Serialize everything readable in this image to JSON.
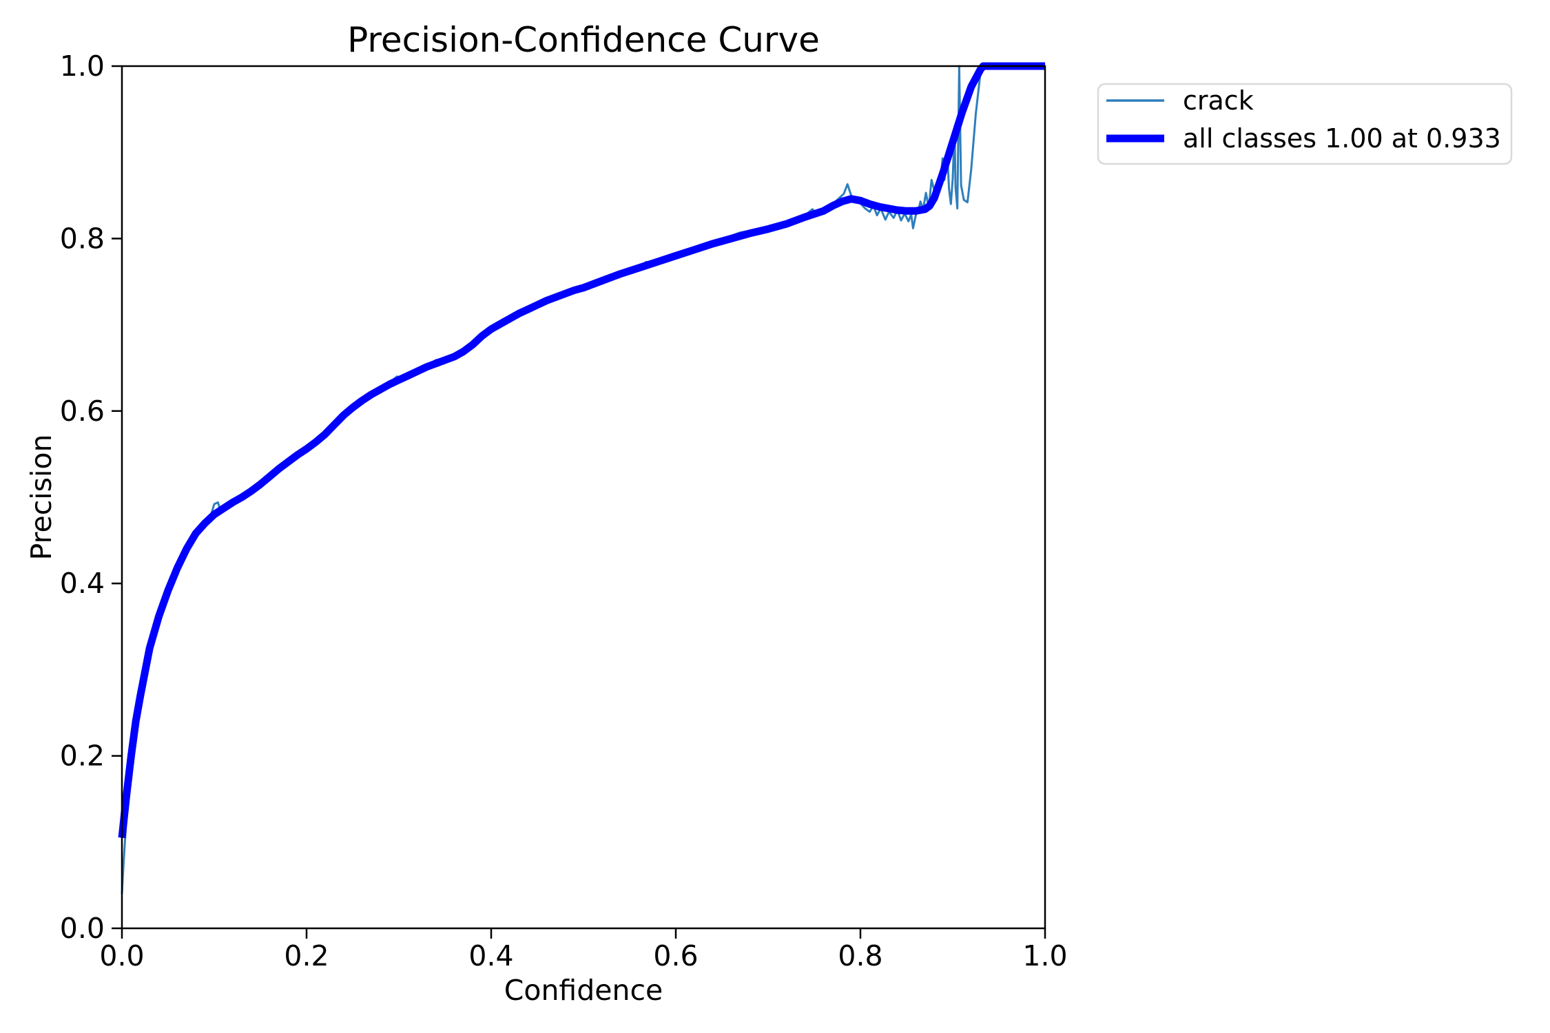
{
  "chart_data": {
    "type": "line",
    "title": "Precision-Confidence Curve",
    "xlabel": "Confidence",
    "ylabel": "Precision",
    "xlim": [
      0.0,
      1.0
    ],
    "ylim": [
      0.0,
      1.0
    ],
    "grid": false,
    "x_ticks": [
      0.0,
      0.2,
      0.4,
      0.6,
      0.8,
      1.0
    ],
    "x_tick_labels": [
      "0.0",
      "0.2",
      "0.4",
      "0.6",
      "0.8",
      "1.0"
    ],
    "y_ticks": [
      0.0,
      0.2,
      0.4,
      0.6,
      0.8,
      1.0
    ],
    "y_tick_labels": [
      "0.0",
      "0.2",
      "0.4",
      "0.6",
      "0.8",
      "1.0"
    ],
    "legend_position": "outside-right-top",
    "legend": [
      {
        "label": "crack",
        "color": "#2e7ebc",
        "linewidth": 3.5
      },
      {
        "label": "all classes 1.00 at 0.933",
        "color": "#0000ff",
        "linewidth": 11
      }
    ],
    "series": [
      {
        "name": "crack",
        "color": "#2e7ebc",
        "linewidth": 3,
        "points": [
          [
            0.0,
            0.04
          ],
          [
            0.002,
            0.08
          ],
          [
            0.005,
            0.13
          ],
          [
            0.008,
            0.17
          ],
          [
            0.01,
            0.195
          ],
          [
            0.015,
            0.238
          ],
          [
            0.02,
            0.268
          ],
          [
            0.03,
            0.322
          ],
          [
            0.04,
            0.36
          ],
          [
            0.05,
            0.39
          ],
          [
            0.06,
            0.416
          ],
          [
            0.07,
            0.438
          ],
          [
            0.08,
            0.456
          ],
          [
            0.09,
            0.468
          ],
          [
            0.095,
            0.474
          ],
          [
            0.1,
            0.492
          ],
          [
            0.104,
            0.494
          ],
          [
            0.107,
            0.483
          ],
          [
            0.11,
            0.488
          ],
          [
            0.12,
            0.494
          ],
          [
            0.13,
            0.5
          ],
          [
            0.14,
            0.507
          ],
          [
            0.15,
            0.515
          ],
          [
            0.16,
            0.524
          ],
          [
            0.17,
            0.533
          ],
          [
            0.18,
            0.541
          ],
          [
            0.19,
            0.549
          ],
          [
            0.2,
            0.556
          ],
          [
            0.21,
            0.564
          ],
          [
            0.22,
            0.573
          ],
          [
            0.23,
            0.584
          ],
          [
            0.24,
            0.595
          ],
          [
            0.25,
            0.604
          ],
          [
            0.26,
            0.612
          ],
          [
            0.27,
            0.619
          ],
          [
            0.28,
            0.626
          ],
          [
            0.29,
            0.633
          ],
          [
            0.298,
            0.64
          ],
          [
            0.305,
            0.638
          ],
          [
            0.31,
            0.642
          ],
          [
            0.32,
            0.647
          ],
          [
            0.33,
            0.652
          ],
          [
            0.34,
            0.659
          ],
          [
            0.35,
            0.661
          ],
          [
            0.36,
            0.664
          ],
          [
            0.37,
            0.671
          ],
          [
            0.38,
            0.678
          ],
          [
            0.39,
            0.688
          ],
          [
            0.4,
            0.696
          ],
          [
            0.42,
            0.708
          ],
          [
            0.44,
            0.719
          ],
          [
            0.46,
            0.729
          ],
          [
            0.48,
            0.737
          ],
          [
            0.5,
            0.744
          ],
          [
            0.52,
            0.752
          ],
          [
            0.54,
            0.76
          ],
          [
            0.56,
            0.767
          ],
          [
            0.568,
            0.773
          ],
          [
            0.575,
            0.77
          ],
          [
            0.58,
            0.775
          ],
          [
            0.6,
            0.781
          ],
          [
            0.62,
            0.788
          ],
          [
            0.64,
            0.795
          ],
          [
            0.655,
            0.8
          ],
          [
            0.662,
            0.804
          ],
          [
            0.67,
            0.807
          ],
          [
            0.68,
            0.809
          ],
          [
            0.69,
            0.809
          ],
          [
            0.7,
            0.813
          ],
          [
            0.71,
            0.817
          ],
          [
            0.72,
            0.819
          ],
          [
            0.73,
            0.823
          ],
          [
            0.74,
            0.827
          ],
          [
            0.748,
            0.834
          ],
          [
            0.753,
            0.828
          ],
          [
            0.76,
            0.834
          ],
          [
            0.77,
            0.84
          ],
          [
            0.777,
            0.847
          ],
          [
            0.782,
            0.852
          ],
          [
            0.786,
            0.863
          ],
          [
            0.79,
            0.85
          ],
          [
            0.795,
            0.843
          ],
          [
            0.8,
            0.841
          ],
          [
            0.805,
            0.835
          ],
          [
            0.81,
            0.831
          ],
          [
            0.814,
            0.838
          ],
          [
            0.818,
            0.827
          ],
          [
            0.822,
            0.835
          ],
          [
            0.827,
            0.822
          ],
          [
            0.831,
            0.831
          ],
          [
            0.836,
            0.824
          ],
          [
            0.84,
            0.833
          ],
          [
            0.844,
            0.821
          ],
          [
            0.848,
            0.829
          ],
          [
            0.852,
            0.82
          ],
          [
            0.855,
            0.828
          ],
          [
            0.857,
            0.812
          ],
          [
            0.86,
            0.827
          ],
          [
            0.863,
            0.833
          ],
          [
            0.865,
            0.843
          ],
          [
            0.868,
            0.834
          ],
          [
            0.871,
            0.853
          ],
          [
            0.874,
            0.836
          ],
          [
            0.877,
            0.868
          ],
          [
            0.88,
            0.856
          ],
          [
            0.883,
            0.864
          ],
          [
            0.886,
            0.859
          ],
          [
            0.889,
            0.893
          ],
          [
            0.891,
            0.868
          ],
          [
            0.894,
            0.9
          ],
          [
            0.896,
            0.858
          ],
          [
            0.898,
            0.84
          ],
          [
            0.9,
            0.87
          ],
          [
            0.902,
            0.93
          ],
          [
            0.903,
            0.86
          ],
          [
            0.905,
            0.835
          ],
          [
            0.907,
            1.0
          ],
          [
            0.909,
            0.862
          ],
          [
            0.912,
            0.845
          ],
          [
            0.916,
            0.842
          ],
          [
            0.92,
            0.88
          ],
          [
            0.925,
            0.945
          ],
          [
            0.93,
            0.992
          ],
          [
            0.933,
            1.0
          ],
          [
            1.0,
            1.0
          ]
        ]
      },
      {
        "name": "all classes",
        "color": "#0000ff",
        "linewidth": 11,
        "points": [
          [
            0.0,
            0.105
          ],
          [
            0.005,
            0.155
          ],
          [
            0.01,
            0.2
          ],
          [
            0.015,
            0.24
          ],
          [
            0.02,
            0.27
          ],
          [
            0.03,
            0.325
          ],
          [
            0.04,
            0.362
          ],
          [
            0.05,
            0.392
          ],
          [
            0.06,
            0.418
          ],
          [
            0.07,
            0.44
          ],
          [
            0.08,
            0.458
          ],
          [
            0.09,
            0.47
          ],
          [
            0.1,
            0.48
          ],
          [
            0.11,
            0.487
          ],
          [
            0.12,
            0.494
          ],
          [
            0.13,
            0.5
          ],
          [
            0.14,
            0.507
          ],
          [
            0.15,
            0.515
          ],
          [
            0.16,
            0.524
          ],
          [
            0.17,
            0.533
          ],
          [
            0.18,
            0.541
          ],
          [
            0.19,
            0.549
          ],
          [
            0.2,
            0.556
          ],
          [
            0.21,
            0.564
          ],
          [
            0.22,
            0.573
          ],
          [
            0.23,
            0.584
          ],
          [
            0.24,
            0.595
          ],
          [
            0.25,
            0.604
          ],
          [
            0.26,
            0.612
          ],
          [
            0.27,
            0.619
          ],
          [
            0.28,
            0.625
          ],
          [
            0.29,
            0.631
          ],
          [
            0.3,
            0.636
          ],
          [
            0.31,
            0.641
          ],
          [
            0.32,
            0.646
          ],
          [
            0.33,
            0.651
          ],
          [
            0.34,
            0.655
          ],
          [
            0.35,
            0.659
          ],
          [
            0.36,
            0.663
          ],
          [
            0.37,
            0.669
          ],
          [
            0.38,
            0.677
          ],
          [
            0.39,
            0.687
          ],
          [
            0.4,
            0.695
          ],
          [
            0.41,
            0.701
          ],
          [
            0.42,
            0.707
          ],
          [
            0.43,
            0.713
          ],
          [
            0.44,
            0.718
          ],
          [
            0.45,
            0.723
          ],
          [
            0.46,
            0.728
          ],
          [
            0.47,
            0.732
          ],
          [
            0.48,
            0.736
          ],
          [
            0.49,
            0.74
          ],
          [
            0.5,
            0.743
          ],
          [
            0.52,
            0.751
          ],
          [
            0.54,
            0.759
          ],
          [
            0.56,
            0.766
          ],
          [
            0.58,
            0.773
          ],
          [
            0.6,
            0.78
          ],
          [
            0.62,
            0.787
          ],
          [
            0.64,
            0.794
          ],
          [
            0.66,
            0.8
          ],
          [
            0.68,
            0.806
          ],
          [
            0.7,
            0.811
          ],
          [
            0.72,
            0.817
          ],
          [
            0.74,
            0.825
          ],
          [
            0.76,
            0.832
          ],
          [
            0.77,
            0.838
          ],
          [
            0.78,
            0.843
          ],
          [
            0.79,
            0.846
          ],
          [
            0.8,
            0.844
          ],
          [
            0.81,
            0.84
          ],
          [
            0.82,
            0.837
          ],
          [
            0.83,
            0.835
          ],
          [
            0.84,
            0.833
          ],
          [
            0.85,
            0.832
          ],
          [
            0.86,
            0.832
          ],
          [
            0.87,
            0.834
          ],
          [
            0.875,
            0.838
          ],
          [
            0.88,
            0.847
          ],
          [
            0.89,
            0.878
          ],
          [
            0.9,
            0.912
          ],
          [
            0.91,
            0.946
          ],
          [
            0.92,
            0.976
          ],
          [
            0.93,
            0.996
          ],
          [
            0.933,
            1.0
          ],
          [
            1.0,
            1.0
          ]
        ]
      }
    ]
  }
}
